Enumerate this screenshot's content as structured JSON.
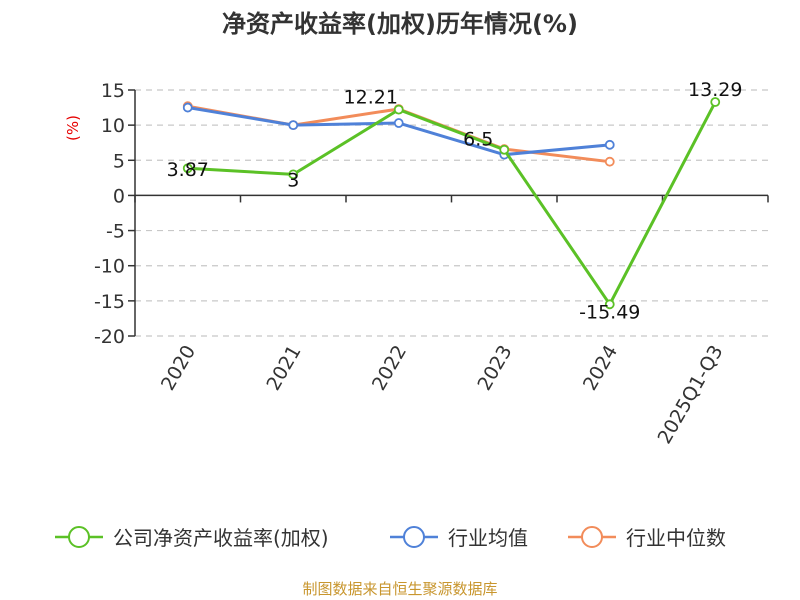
{
  "chart_data": {
    "type": "line",
    "title": "净资产收益率(加权)历年情况(%)",
    "ylabel": "(%)",
    "categories": [
      "2020",
      "2021",
      "2022",
      "2023",
      "2024",
      "2025Q1-Q3"
    ],
    "ylim": [
      -20,
      15
    ],
    "yticks": [
      15,
      10,
      5,
      0,
      -5,
      -10,
      -15,
      -20
    ],
    "grid": true,
    "legend_position": "bottom",
    "series": [
      {
        "name": "公司净资产收益率(加权)",
        "color": "#5bc126",
        "values": [
          3.87,
          3,
          12.21,
          6.5,
          -15.49,
          13.29
        ],
        "labels": [
          "3.87",
          "3",
          "12.21",
          "6.5",
          "-15.49",
          "13.29"
        ]
      },
      {
        "name": "行业均值",
        "color": "#4f81d8",
        "values": [
          12.5,
          10.0,
          10.3,
          5.8,
          7.2,
          null
        ]
      },
      {
        "name": "行业中位数",
        "color": "#f28c5a",
        "values": [
          12.7,
          10.0,
          12.3,
          6.6,
          4.8,
          null
        ]
      }
    ]
  },
  "source": "制图数据来自恒生聚源数据库"
}
